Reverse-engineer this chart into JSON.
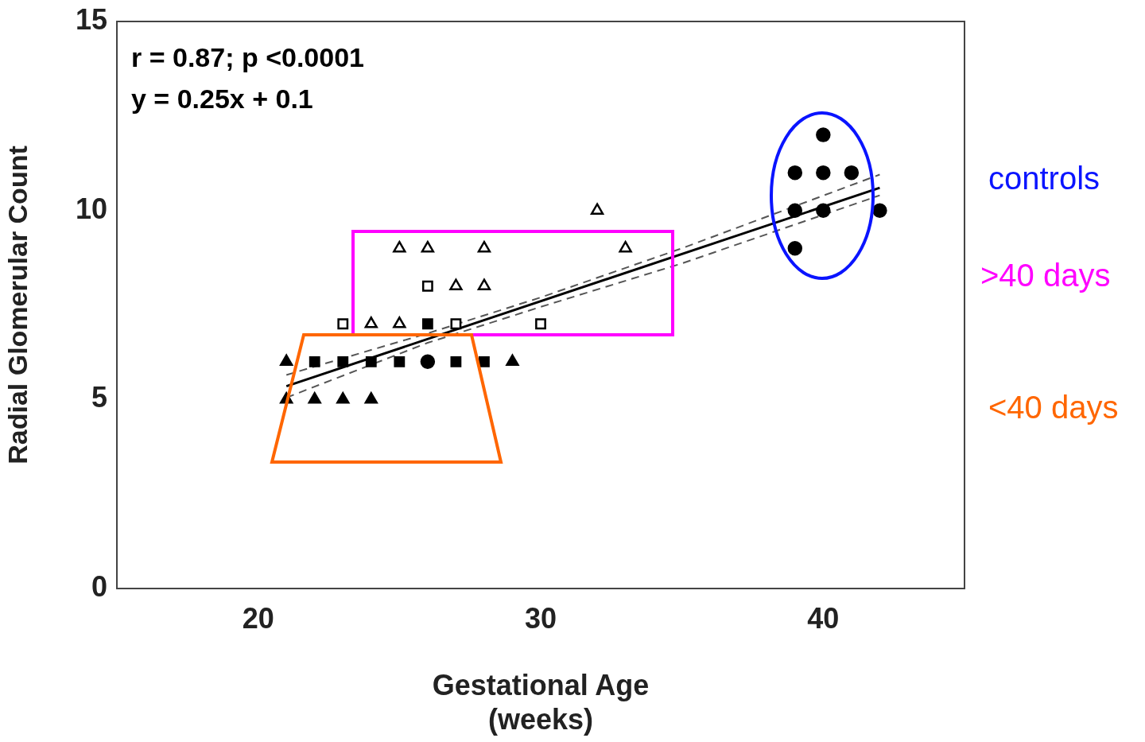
{
  "chart_data": {
    "type": "scatter",
    "xlabel": "Gestational Age\n(weeks)",
    "ylabel": "Radial Glomerular Count",
    "xlim": [
      15,
      45
    ],
    "xticks": [
      20,
      30,
      40
    ],
    "ylim": [
      0,
      15
    ],
    "yticks": [
      0,
      5,
      10,
      15
    ],
    "grid": false,
    "legend": false,
    "annotations": [
      "r = 0.87; p <0.0001",
      "y = 0.25x + 0.1",
      "controls",
      ">40 days",
      "<40 days"
    ],
    "series": [
      {
        "type": "scatter",
        "marker": "triangle",
        "color": "#000000",
        "x": [
          25,
          26,
          28,
          27,
          28,
          24,
          25,
          32,
          33
        ],
        "values": [
          9,
          9,
          9,
          8,
          8,
          7,
          7,
          10,
          9
        ]
      },
      {
        "type": "scatter",
        "marker": "square",
        "color": "#000000",
        "x": [
          26,
          23,
          27,
          30
        ],
        "values": [
          8,
          7,
          7,
          7
        ]
      },
      {
        "type": "scatter",
        "marker": "square",
        "color": "#000000",
        "x": [
          22,
          23,
          24,
          25,
          27,
          28,
          26
        ],
        "values": [
          6,
          6,
          6,
          6,
          6,
          6,
          7
        ]
      },
      {
        "type": "scatter",
        "marker": "triangle",
        "color": "#000000",
        "x": [
          21,
          29,
          21,
          22,
          23,
          24
        ],
        "values": [
          6,
          6,
          5,
          5,
          5,
          5
        ]
      },
      {
        "type": "scatter",
        "marker": "circle",
        "color": "#000000",
        "x": [
          26,
          39,
          40,
          41,
          40,
          39,
          40,
          42,
          39
        ],
        "values": [
          6,
          11,
          11,
          11,
          12,
          10,
          10,
          10,
          9
        ]
      },
      {
        "type": "line",
        "line_style": "solid",
        "color": "#000000",
        "x": [
          21,
          42
        ],
        "values": [
          5.35,
          10.6
        ]
      },
      {
        "type": "line",
        "line_style": "dashed",
        "color": "#555555",
        "x": [
          21,
          26,
          30,
          35,
          42
        ],
        "values": [
          5.65,
          6.75,
          7.7,
          9.0,
          10.95
        ]
      },
      {
        "type": "line",
        "line_style": "dashed",
        "color": "#555555",
        "x": [
          21,
          26,
          30,
          35,
          42
        ],
        "values": [
          5.05,
          6.5,
          7.45,
          8.6,
          10.4
        ]
      }
    ]
  }
}
